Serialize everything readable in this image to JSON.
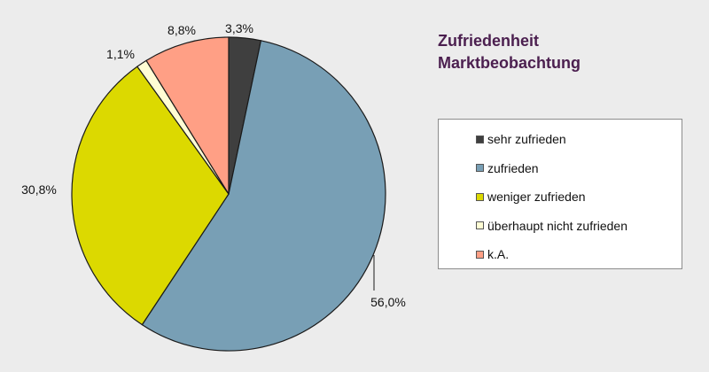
{
  "chart_data": {
    "type": "pie",
    "title_lines": [
      "Zufriedenheit",
      "Marktbeobachtung"
    ],
    "categories": [
      "sehr zufrieden",
      "zufrieden",
      "weniger zufrieden",
      "überhaupt nicht zufrieden",
      "k.A."
    ],
    "values": [
      3.3,
      56.0,
      30.8,
      1.1,
      8.8
    ],
    "value_labels": [
      "3,3%",
      "56,0%",
      "30,8%",
      "1,1%",
      "8,8%"
    ],
    "colors": [
      "#3f3f3f",
      "#789fb5",
      "#dcd900",
      "#fffdd4",
      "#ff9f85"
    ],
    "start_angle_deg": 0,
    "direction": "clockwise",
    "legend_position": "right"
  }
}
